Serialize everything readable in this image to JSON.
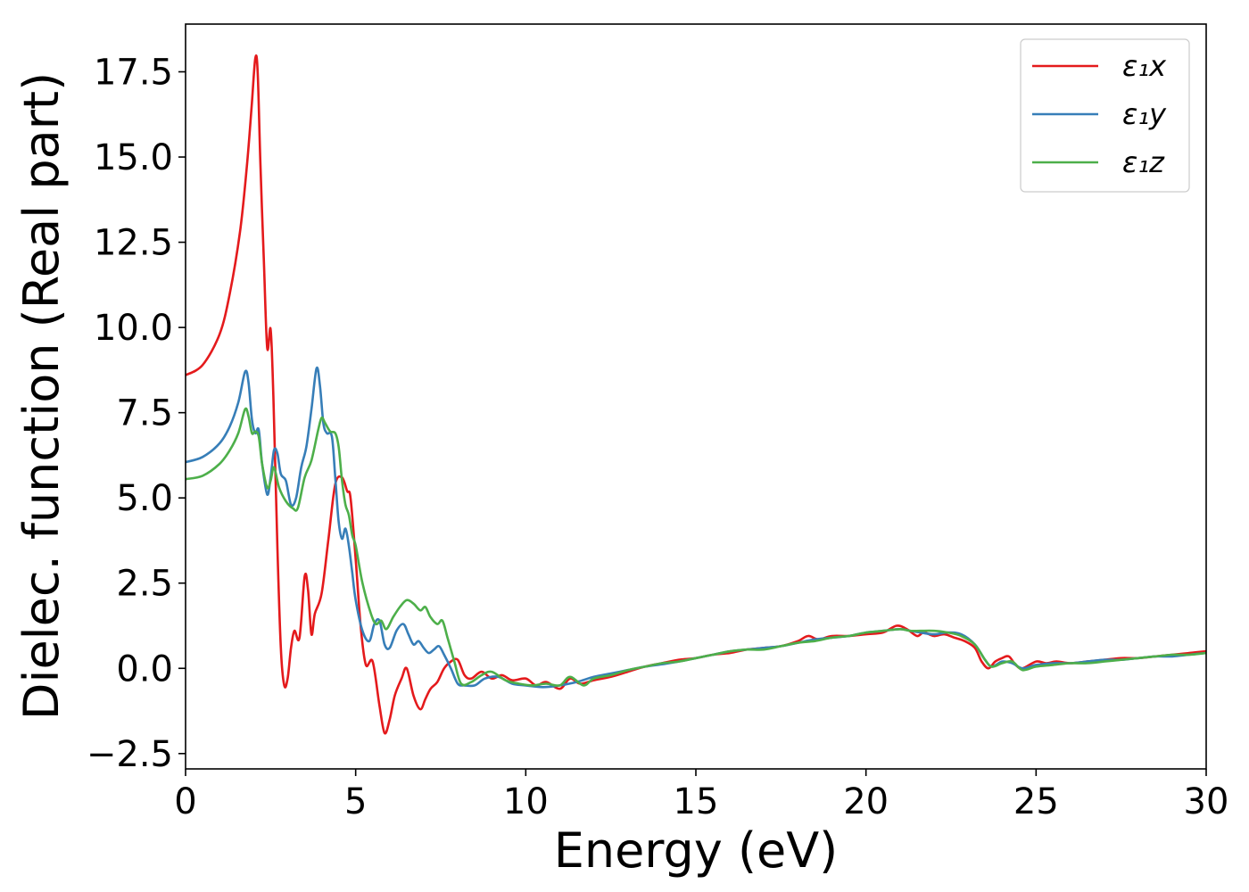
{
  "chart_data": {
    "type": "line",
    "xlabel": "Energy (eV)",
    "ylabel": "Dielec. function (Real part)",
    "xlim": [
      0,
      30
    ],
    "ylim": [
      -2.95,
      18.9
    ],
    "xticks": [
      0,
      5,
      10,
      15,
      20,
      25,
      30
    ],
    "xtick_labels": [
      "0",
      "5",
      "10",
      "15",
      "20",
      "25",
      "30"
    ],
    "yticks": [
      -2.5,
      0.0,
      2.5,
      5.0,
      7.5,
      10.0,
      12.5,
      15.0,
      17.5
    ],
    "ytick_labels": [
      "−2.5",
      "0.0",
      "2.5",
      "5.0",
      "7.5",
      "10.0",
      "12.5",
      "15.0",
      "17.5"
    ],
    "grid": false,
    "legend_position": "top-right",
    "series": [
      {
        "name": "ε₁x",
        "color": "#e41a1c",
        "x": [
          0,
          0.5,
          1.0,
          1.3,
          1.6,
          1.8,
          1.95,
          2.05,
          2.12,
          2.2,
          2.3,
          2.4,
          2.5,
          2.58,
          2.7,
          2.8,
          2.9,
          3.0,
          3.1,
          3.2,
          3.35,
          3.5,
          3.6,
          3.7,
          3.8,
          4.0,
          4.2,
          4.4,
          4.6,
          4.75,
          4.85,
          5.0,
          5.15,
          5.3,
          5.5,
          5.7,
          5.85,
          6.0,
          6.15,
          6.35,
          6.5,
          6.7,
          6.9,
          7.05,
          7.2,
          7.4,
          7.6,
          7.8,
          8.0,
          8.2,
          8.4,
          8.7,
          9.0,
          9.3,
          9.6,
          10.0,
          10.3,
          10.6,
          11.0,
          11.3,
          11.6,
          12.0,
          12.5,
          13.0,
          13.5,
          14.0,
          14.5,
          15.0,
          15.5,
          16.0,
          16.5,
          17.0,
          17.5,
          18.0,
          18.3,
          18.6,
          19.0,
          19.5,
          20.0,
          20.5,
          20.9,
          21.2,
          21.5,
          21.7,
          22.0,
          22.3,
          22.6,
          22.9,
          23.2,
          23.4,
          23.6,
          23.8,
          24.0,
          24.2,
          24.4,
          24.6,
          25.0,
          25.3,
          25.6,
          26.0,
          26.5,
          27.0,
          27.5,
          28.0,
          28.5,
          29.0,
          29.5,
          30.0
        ],
        "values": [
          8.6,
          8.9,
          9.8,
          11.0,
          12.8,
          14.7,
          16.6,
          17.9,
          17.5,
          14.8,
          12.0,
          9.4,
          9.95,
          8.0,
          3.5,
          0.6,
          -0.5,
          -0.3,
          0.6,
          1.1,
          0.9,
          2.7,
          2.3,
          1.0,
          1.6,
          2.2,
          3.8,
          5.4,
          5.6,
          5.2,
          5.0,
          3.2,
          1.2,
          0.1,
          0.2,
          -1.1,
          -1.9,
          -1.5,
          -0.8,
          -0.3,
          0.0,
          -0.8,
          -1.2,
          -0.9,
          -0.6,
          -0.4,
          0.0,
          0.2,
          0.25,
          -0.2,
          -0.3,
          -0.1,
          -0.3,
          -0.2,
          -0.35,
          -0.3,
          -0.5,
          -0.4,
          -0.6,
          -0.3,
          -0.45,
          -0.35,
          -0.25,
          -0.1,
          0.05,
          0.15,
          0.25,
          0.3,
          0.4,
          0.45,
          0.55,
          0.6,
          0.65,
          0.8,
          0.95,
          0.85,
          0.95,
          0.95,
          1.0,
          1.05,
          1.25,
          1.15,
          0.95,
          1.05,
          0.95,
          1.0,
          0.9,
          0.8,
          0.6,
          0.2,
          0.0,
          0.2,
          0.3,
          0.35,
          0.1,
          0.0,
          0.2,
          0.15,
          0.2,
          0.15,
          0.2,
          0.25,
          0.3,
          0.3,
          0.35,
          0.4,
          0.45,
          0.5
        ]
      },
      {
        "name": "ε₁y",
        "color": "#377eb8",
        "x": [
          0,
          0.5,
          1.0,
          1.3,
          1.55,
          1.75,
          1.85,
          1.95,
          2.05,
          2.15,
          2.25,
          2.4,
          2.5,
          2.6,
          2.7,
          2.8,
          2.95,
          3.1,
          3.25,
          3.4,
          3.55,
          3.7,
          3.85,
          3.95,
          4.05,
          4.15,
          4.3,
          4.4,
          4.5,
          4.6,
          4.7,
          4.8,
          4.9,
          5.0,
          5.2,
          5.4,
          5.55,
          5.7,
          5.85,
          6.0,
          6.2,
          6.4,
          6.55,
          6.7,
          6.85,
          7.0,
          7.15,
          7.3,
          7.45,
          7.6,
          7.8,
          8.0,
          8.2,
          8.5,
          8.8,
          9.2,
          9.6,
          10.0,
          10.5,
          11.0,
          11.5,
          12.0,
          12.5,
          13.0,
          13.5,
          14.0,
          14.5,
          15.0,
          15.5,
          16.0,
          16.5,
          17.0,
          17.5,
          18.0,
          18.5,
          19.0,
          19.5,
          20.0,
          20.5,
          21.0,
          21.3,
          21.6,
          22.0,
          22.4,
          22.8,
          23.2,
          23.5,
          23.7,
          24.0,
          24.3,
          24.6,
          25.0,
          25.5,
          26.0,
          26.5,
          27.0,
          27.5,
          28.0,
          28.5,
          29.0,
          29.5,
          30.0
        ],
        "values": [
          6.05,
          6.2,
          6.6,
          7.1,
          7.8,
          8.7,
          8.4,
          7.3,
          6.9,
          7.0,
          6.0,
          5.1,
          5.6,
          6.4,
          6.3,
          5.7,
          5.5,
          4.8,
          5.0,
          5.9,
          6.5,
          7.6,
          8.8,
          8.3,
          7.2,
          6.9,
          6.8,
          5.6,
          4.3,
          3.8,
          4.1,
          3.6,
          2.8,
          2.0,
          1.1,
          0.8,
          1.3,
          1.4,
          0.7,
          0.6,
          1.1,
          1.3,
          1.0,
          0.7,
          0.8,
          0.6,
          0.45,
          0.55,
          0.65,
          0.4,
          0.0,
          -0.45,
          -0.5,
          -0.5,
          -0.3,
          -0.25,
          -0.45,
          -0.5,
          -0.55,
          -0.5,
          -0.4,
          -0.25,
          -0.15,
          -0.05,
          0.05,
          0.12,
          0.2,
          0.3,
          0.4,
          0.5,
          0.55,
          0.6,
          0.65,
          0.75,
          0.85,
          0.9,
          0.95,
          1.05,
          1.1,
          1.15,
          1.1,
          1.05,
          1.0,
          1.05,
          1.0,
          0.7,
          0.25,
          0.05,
          0.2,
          0.15,
          0.0,
          0.1,
          0.15,
          0.15,
          0.2,
          0.25,
          0.25,
          0.3,
          0.35,
          0.35,
          0.4,
          0.45
        ]
      },
      {
        "name": "ε₁z",
        "color": "#4daf4a",
        "x": [
          0,
          0.5,
          1.0,
          1.3,
          1.55,
          1.75,
          1.85,
          1.95,
          2.05,
          2.15,
          2.25,
          2.4,
          2.5,
          2.6,
          2.75,
          2.95,
          3.15,
          3.3,
          3.5,
          3.7,
          3.9,
          4.0,
          4.1,
          4.25,
          4.4,
          4.5,
          4.6,
          4.7,
          4.8,
          4.9,
          5.0,
          5.2,
          5.45,
          5.6,
          5.75,
          5.9,
          6.1,
          6.3,
          6.5,
          6.7,
          6.9,
          7.05,
          7.2,
          7.4,
          7.55,
          7.7,
          7.9,
          8.1,
          8.4,
          8.7,
          9.0,
          9.4,
          9.8,
          10.2,
          10.6,
          11.0,
          11.3,
          11.7,
          12.0,
          12.5,
          13.0,
          13.5,
          14.0,
          14.5,
          15.0,
          15.5,
          16.0,
          16.5,
          17.0,
          17.5,
          18.0,
          18.5,
          19.0,
          19.5,
          20.0,
          20.5,
          21.0,
          21.3,
          21.6,
          22.0,
          22.4,
          22.8,
          23.2,
          23.5,
          23.7,
          24.0,
          24.3,
          24.6,
          25.0,
          25.5,
          26.0,
          26.5,
          27.0,
          27.5,
          28.0,
          28.5,
          29.0,
          29.5,
          30.0
        ],
        "values": [
          5.55,
          5.65,
          6.0,
          6.4,
          6.9,
          7.6,
          7.4,
          6.9,
          6.95,
          6.8,
          6.0,
          5.3,
          5.5,
          5.9,
          5.3,
          4.9,
          4.7,
          4.7,
          5.6,
          6.1,
          7.0,
          7.35,
          7.2,
          6.95,
          6.9,
          6.5,
          5.5,
          4.8,
          4.5,
          3.9,
          3.6,
          2.5,
          1.6,
          1.3,
          1.4,
          1.15,
          1.5,
          1.8,
          2.0,
          1.9,
          1.7,
          1.8,
          1.5,
          1.3,
          1.4,
          0.9,
          0.2,
          -0.45,
          -0.4,
          -0.2,
          -0.1,
          -0.35,
          -0.45,
          -0.5,
          -0.45,
          -0.5,
          -0.25,
          -0.5,
          -0.3,
          -0.2,
          -0.05,
          0.05,
          0.15,
          0.2,
          0.3,
          0.4,
          0.5,
          0.55,
          0.55,
          0.65,
          0.75,
          0.8,
          0.9,
          0.95,
          1.05,
          1.1,
          1.15,
          1.1,
          1.1,
          1.1,
          1.05,
          0.95,
          0.7,
          0.25,
          0.05,
          0.15,
          0.2,
          -0.05,
          0.05,
          0.1,
          0.15,
          0.15,
          0.2,
          0.25,
          0.3,
          0.35,
          0.4,
          0.4,
          0.45
        ]
      }
    ]
  }
}
